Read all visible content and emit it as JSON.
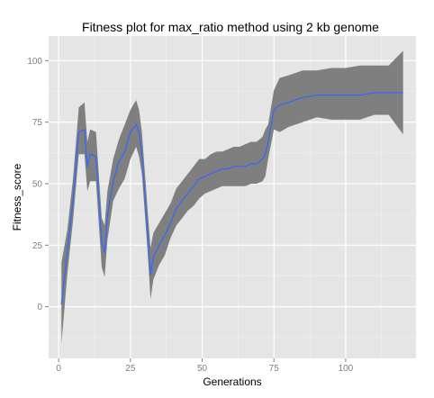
{
  "chart_data": {
    "type": "line",
    "title": "Fitness plot for max_ratio method using 2 kb genome",
    "xlabel": "Generations",
    "ylabel": "Fitness_score",
    "xlim": [
      -3.5,
      124.5
    ],
    "ylim": [
      -21,
      110
    ],
    "x_ticks": [
      0,
      25,
      50,
      75,
      100
    ],
    "y_ticks": [
      0,
      25,
      50,
      75,
      100
    ],
    "grid": true,
    "legend": "none",
    "colors": {
      "panel": "#e5e5e5",
      "grid_major": "#ffffff",
      "grid_minor": "#f2f2f2",
      "ribbon": "#7f7f7f",
      "line": "#3366ff",
      "tick_text": "#7f7f7f"
    },
    "series": [
      {
        "x": [
          1,
          3,
          5,
          7,
          9,
          10,
          11,
          13,
          15,
          16,
          17,
          19,
          21,
          23,
          25,
          27,
          28,
          29,
          31,
          32,
          33,
          35,
          37,
          39,
          41,
          43,
          45,
          47,
          49,
          51,
          53,
          55,
          57,
          59,
          61,
          63,
          65,
          67,
          69,
          71,
          72,
          73,
          75,
          77,
          80,
          85,
          90,
          95,
          100,
          105,
          110,
          115,
          120
        ],
        "values": [
          1,
          22,
          43,
          71,
          72,
          57,
          62,
          61,
          26,
          22,
          37,
          51,
          59,
          63,
          71,
          74,
          71,
          62,
          30,
          13,
          20,
          25,
          29,
          34,
          40,
          43,
          46,
          49,
          52,
          53,
          54,
          55,
          56,
          56,
          57,
          57,
          57,
          58,
          58,
          60,
          62,
          67,
          80,
          82,
          83,
          85,
          86,
          86,
          86,
          86,
          87,
          87,
          87
        ],
        "lower": [
          -15,
          13,
          35,
          62,
          62,
          47,
          51,
          51,
          16,
          12,
          27,
          43,
          48,
          52,
          60,
          65,
          61,
          54,
          22,
          3,
          11,
          17,
          21,
          28,
          33,
          36,
          39,
          41,
          44,
          46,
          47,
          48,
          49,
          49,
          49,
          49,
          49,
          50,
          50,
          51,
          53,
          60,
          72,
          71,
          73,
          75,
          77,
          76,
          76,
          76,
          78,
          78,
          70
        ],
        "upper": [
          18,
          31,
          52,
          81,
          83,
          67,
          72,
          71,
          36,
          33,
          47,
          60,
          68,
          74,
          80,
          84,
          80,
          71,
          39,
          24,
          30,
          34,
          38,
          42,
          48,
          51,
          54,
          57,
          60,
          60,
          62,
          63,
          63,
          64,
          65,
          65,
          66,
          67,
          67,
          69,
          72,
          74,
          88,
          93,
          94,
          96,
          96,
          97,
          97,
          98,
          98,
          98,
          104
        ]
      }
    ]
  }
}
